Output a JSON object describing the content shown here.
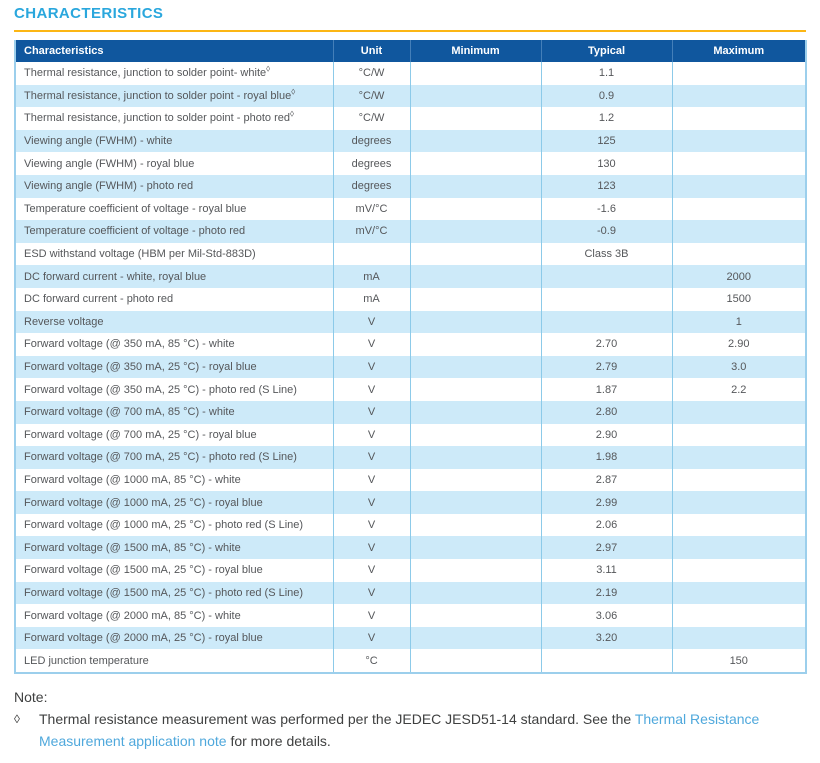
{
  "page": {
    "title": "CHARACTERISTICS"
  },
  "colors": {
    "title_text": "#2aa7dd",
    "title_underline": "#fcb614",
    "header_bg": "#10579e",
    "header_text": "#ffffff",
    "row_alt_bg": "#cdeaf9",
    "table_border": "#9ccfec",
    "body_text": "#55575a",
    "link": "#4fa8dc"
  },
  "table": {
    "headers": [
      "Characteristics",
      "Unit",
      "Minimum",
      "Typical",
      "Maximum"
    ],
    "rows": [
      {
        "label": "Thermal resistance, junction to solder point- white",
        "sup": "◊",
        "unit": "°C/W",
        "min": "",
        "typ": "1.1",
        "max": ""
      },
      {
        "label": "Thermal resistance, junction to solder point - royal blue",
        "sup": "◊",
        "unit": "°C/W",
        "min": "",
        "typ": "0.9",
        "max": ""
      },
      {
        "label": "Thermal resistance, junction to solder point - photo red",
        "sup": "◊",
        "unit": "°C/W",
        "min": "",
        "typ": "1.2",
        "max": ""
      },
      {
        "label": "Viewing angle (FWHM) - white",
        "sup": "",
        "unit": "degrees",
        "min": "",
        "typ": "125",
        "max": ""
      },
      {
        "label": "Viewing angle (FWHM) - royal blue",
        "sup": "",
        "unit": "degrees",
        "min": "",
        "typ": "130",
        "max": ""
      },
      {
        "label": "Viewing angle (FWHM) - photo red",
        "sup": "",
        "unit": "degrees",
        "min": "",
        "typ": "123",
        "max": ""
      },
      {
        "label": "Temperature coefficient of voltage - royal blue",
        "sup": "",
        "unit": "mV/°C",
        "min": "",
        "typ": "-1.6",
        "max": ""
      },
      {
        "label": "Temperature coefficient of voltage - photo red",
        "sup": "",
        "unit": "mV/°C",
        "min": "",
        "typ": "-0.9",
        "max": ""
      },
      {
        "label": "ESD withstand voltage (HBM per Mil-Std-883D)",
        "sup": "",
        "unit": "",
        "min": "",
        "typ": "Class 3B",
        "max": ""
      },
      {
        "label": "DC forward current - white, royal blue",
        "sup": "",
        "unit": "mA",
        "min": "",
        "typ": "",
        "max": "2000"
      },
      {
        "label": "DC forward current - photo red",
        "sup": "",
        "unit": "mA",
        "min": "",
        "typ": "",
        "max": "1500"
      },
      {
        "label": "Reverse voltage",
        "sup": "",
        "unit": "V",
        "min": "",
        "typ": "",
        "max": "1"
      },
      {
        "label": "Forward voltage (@ 350 mA, 85 °C) - white",
        "sup": "",
        "unit": "V",
        "min": "",
        "typ": "2.70",
        "max": "2.90"
      },
      {
        "label": "Forward voltage (@ 350 mA, 25 °C) - royal blue",
        "sup": "",
        "unit": "V",
        "min": "",
        "typ": "2.79",
        "max": "3.0"
      },
      {
        "label": "Forward voltage (@ 350 mA, 25 °C) - photo red (S Line)",
        "sup": "",
        "unit": "V",
        "min": "",
        "typ": "1.87",
        "max": "2.2"
      },
      {
        "label": "Forward voltage (@ 700 mA, 85 °C) - white",
        "sup": "",
        "unit": "V",
        "min": "",
        "typ": "2.80",
        "max": ""
      },
      {
        "label": "Forward voltage (@ 700 mA, 25 °C) - royal blue",
        "sup": "",
        "unit": "V",
        "min": "",
        "typ": "2.90",
        "max": ""
      },
      {
        "label": "Forward voltage (@ 700 mA, 25 °C) - photo red (S Line)",
        "sup": "",
        "unit": "V",
        "min": "",
        "typ": "1.98",
        "max": ""
      },
      {
        "label": "Forward voltage (@ 1000 mA, 85 °C) - white",
        "sup": "",
        "unit": "V",
        "min": "",
        "typ": "2.87",
        "max": ""
      },
      {
        "label": "Forward voltage (@ 1000 mA, 25 °C) - royal blue",
        "sup": "",
        "unit": "V",
        "min": "",
        "typ": "2.99",
        "max": ""
      },
      {
        "label": "Forward voltage (@ 1000 mA, 25 °C) - photo red (S Line)",
        "sup": "",
        "unit": "V",
        "min": "",
        "typ": "2.06",
        "max": ""
      },
      {
        "label": "Forward voltage (@ 1500 mA, 85 °C) - white",
        "sup": "",
        "unit": "V",
        "min": "",
        "typ": "2.97",
        "max": ""
      },
      {
        "label": "Forward voltage (@ 1500 mA, 25 °C) - royal blue",
        "sup": "",
        "unit": "V",
        "min": "",
        "typ": "3.11",
        "max": ""
      },
      {
        "label": "Forward voltage (@ 1500 mA, 25 °C) - photo red (S Line)",
        "sup": "",
        "unit": "V",
        "min": "",
        "typ": "2.19",
        "max": ""
      },
      {
        "label": "Forward voltage (@ 2000 mA, 85 °C) - white",
        "sup": "",
        "unit": "V",
        "min": "",
        "typ": "3.06",
        "max": ""
      },
      {
        "label": "Forward voltage (@ 2000 mA, 25 °C) - royal blue",
        "sup": "",
        "unit": "V",
        "min": "",
        "typ": "3.20",
        "max": ""
      },
      {
        "label": "LED junction temperature",
        "sup": "",
        "unit": "°C",
        "min": "",
        "typ": "",
        "max": "150"
      }
    ]
  },
  "note": {
    "label": "Note:",
    "bullet": "◊",
    "text_pre": "Thermal resistance measurement was performed per the JEDEC JESD51-14 standard. See the ",
    "link_text": "Thermal Resistance Measurement application note",
    "text_post": " for more details."
  }
}
